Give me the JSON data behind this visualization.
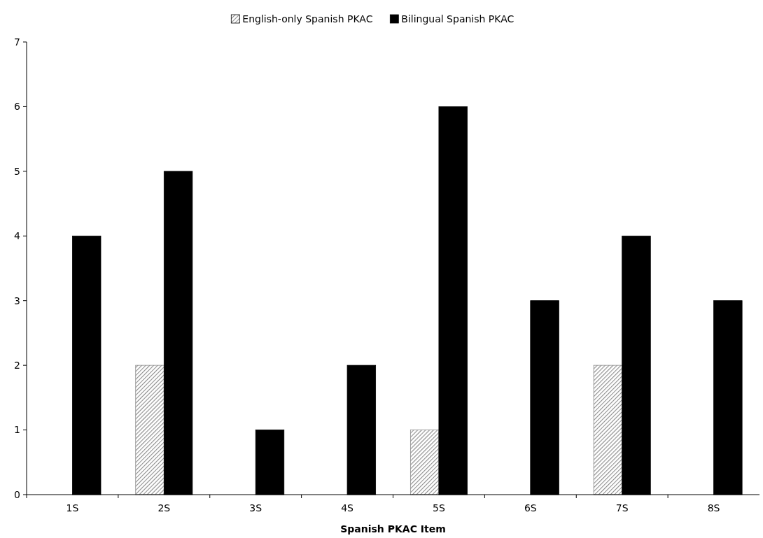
{
  "chart_data": {
    "type": "bar",
    "xlabel": "Spanish PKAC Item",
    "categories": [
      "1S",
      "2S",
      "3S",
      "4S",
      "5S",
      "6S",
      "7S",
      "8S"
    ],
    "series": [
      {
        "name": "English-only Spanish PKAC",
        "color": "#8c8c8c",
        "values": [
          0,
          2,
          0,
          0,
          1,
          0,
          2,
          0
        ]
      },
      {
        "name": "Bilingual Spanish PKAC",
        "color": "#000000",
        "values": [
          4,
          5,
          1,
          2,
          6,
          3,
          4,
          3
        ]
      }
    ],
    "ylim": [
      0,
      7
    ],
    "yticks": [
      0,
      1,
      2,
      3,
      4,
      5,
      6,
      7
    ],
    "grid": false,
    "legend": "top"
  }
}
